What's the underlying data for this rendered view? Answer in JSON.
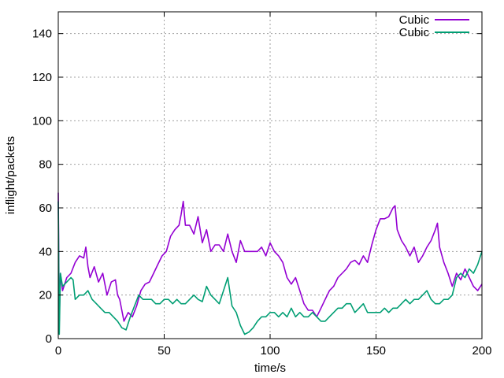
{
  "chart_data": {
    "type": "line",
    "title": "",
    "xlabel": "time/s",
    "ylabel": "inflight/packets",
    "xlim": [
      0,
      200
    ],
    "ylim": [
      0,
      150
    ],
    "x_ticks": [
      0,
      50,
      100,
      150,
      200
    ],
    "y_ticks": [
      0,
      20,
      40,
      60,
      80,
      100,
      120,
      140
    ],
    "x_tick_labels": [
      "0",
      "50",
      "100",
      "150",
      "200"
    ],
    "y_tick_labels": [
      "0",
      "20",
      "40",
      "60",
      "80",
      "100",
      "120",
      "140"
    ],
    "grid": true,
    "legend_position": "top-right",
    "series": [
      {
        "name": "Cubic",
        "color": "#9400d3",
        "x": [
          0,
          0.5,
          1,
          2,
          4,
          6,
          8,
          10,
          12,
          13,
          14,
          15,
          17,
          19,
          21,
          23,
          25,
          27,
          28,
          29,
          31,
          33,
          35,
          37,
          39,
          41,
          43,
          45,
          47,
          49,
          51,
          53,
          55,
          57,
          58,
          59,
          60,
          62,
          64,
          66,
          68,
          70,
          72,
          74,
          76,
          78,
          80,
          82,
          84,
          86,
          88,
          90,
          92,
          94,
          96,
          98,
          100,
          102,
          104,
          106,
          108,
          110,
          112,
          114,
          116,
          118,
          120,
          122,
          124,
          126,
          128,
          130,
          132,
          134,
          136,
          138,
          140,
          142,
          144,
          146,
          148,
          150,
          152,
          154,
          156,
          158,
          159,
          160,
          162,
          164,
          166,
          168,
          170,
          172,
          174,
          176,
          178,
          179,
          180,
          182,
          184,
          186,
          188,
          190,
          192,
          194,
          196,
          198,
          200
        ],
        "values": [
          67,
          8,
          30,
          22,
          28,
          30,
          35,
          38,
          37,
          42,
          33,
          28,
          33,
          26,
          30,
          20,
          26,
          27,
          20,
          18,
          8,
          12,
          10,
          15,
          22,
          25,
          26,
          30,
          34,
          38,
          40,
          47,
          50,
          52,
          57,
          63,
          52,
          52,
          48,
          56,
          44,
          50,
          40,
          43,
          43,
          40,
          48,
          40,
          35,
          45,
          40,
          40,
          40,
          40,
          42,
          38,
          44,
          40,
          38,
          35,
          28,
          25,
          28,
          22,
          16,
          13,
          13,
          10,
          14,
          18,
          22,
          24,
          28,
          30,
          32,
          35,
          36,
          34,
          38,
          35,
          43,
          50,
          55,
          55,
          56,
          60,
          61,
          50,
          45,
          42,
          38,
          42,
          35,
          38,
          42,
          45,
          50,
          53,
          42,
          35,
          30,
          24,
          30,
          27,
          32,
          28,
          24,
          22,
          25
        ]
      },
      {
        "name": "Cubic",
        "color": "#009e73",
        "x": [
          0,
          0.5,
          1,
          2,
          4,
          6,
          7,
          8,
          10,
          12,
          14,
          16,
          18,
          20,
          22,
          24,
          26,
          28,
          30,
          32,
          34,
          36,
          38,
          40,
          42,
          44,
          46,
          48,
          50,
          52,
          54,
          56,
          58,
          60,
          62,
          64,
          66,
          68,
          70,
          72,
          74,
          76,
          78,
          80,
          82,
          84,
          86,
          88,
          90,
          92,
          94,
          96,
          98,
          100,
          102,
          104,
          106,
          108,
          110,
          112,
          114,
          116,
          118,
          120,
          122,
          124,
          126,
          128,
          130,
          132,
          134,
          136,
          138,
          140,
          142,
          144,
          146,
          148,
          150,
          152,
          154,
          156,
          158,
          160,
          162,
          164,
          166,
          168,
          170,
          172,
          174,
          176,
          178,
          180,
          182,
          184,
          186,
          188,
          190,
          192,
          194,
          196,
          198,
          200
        ],
        "values": [
          63,
          2,
          30,
          24,
          26,
          28,
          27,
          18,
          20,
          20,
          22,
          18,
          16,
          14,
          12,
          12,
          10,
          8,
          5,
          4,
          10,
          15,
          20,
          18,
          18,
          18,
          16,
          16,
          18,
          18,
          16,
          18,
          16,
          16,
          18,
          20,
          18,
          17,
          24,
          20,
          18,
          16,
          22,
          28,
          15,
          12,
          6,
          2,
          3,
          5,
          8,
          10,
          10,
          12,
          12,
          10,
          12,
          10,
          14,
          10,
          12,
          10,
          10,
          12,
          10,
          8,
          8,
          10,
          12,
          14,
          14,
          16,
          16,
          12,
          14,
          16,
          12,
          12,
          12,
          12,
          14,
          12,
          14,
          14,
          16,
          18,
          16,
          18,
          18,
          20,
          22,
          18,
          16,
          16,
          18,
          18,
          20,
          28,
          30,
          28,
          32,
          30,
          34,
          40
        ]
      }
    ]
  }
}
